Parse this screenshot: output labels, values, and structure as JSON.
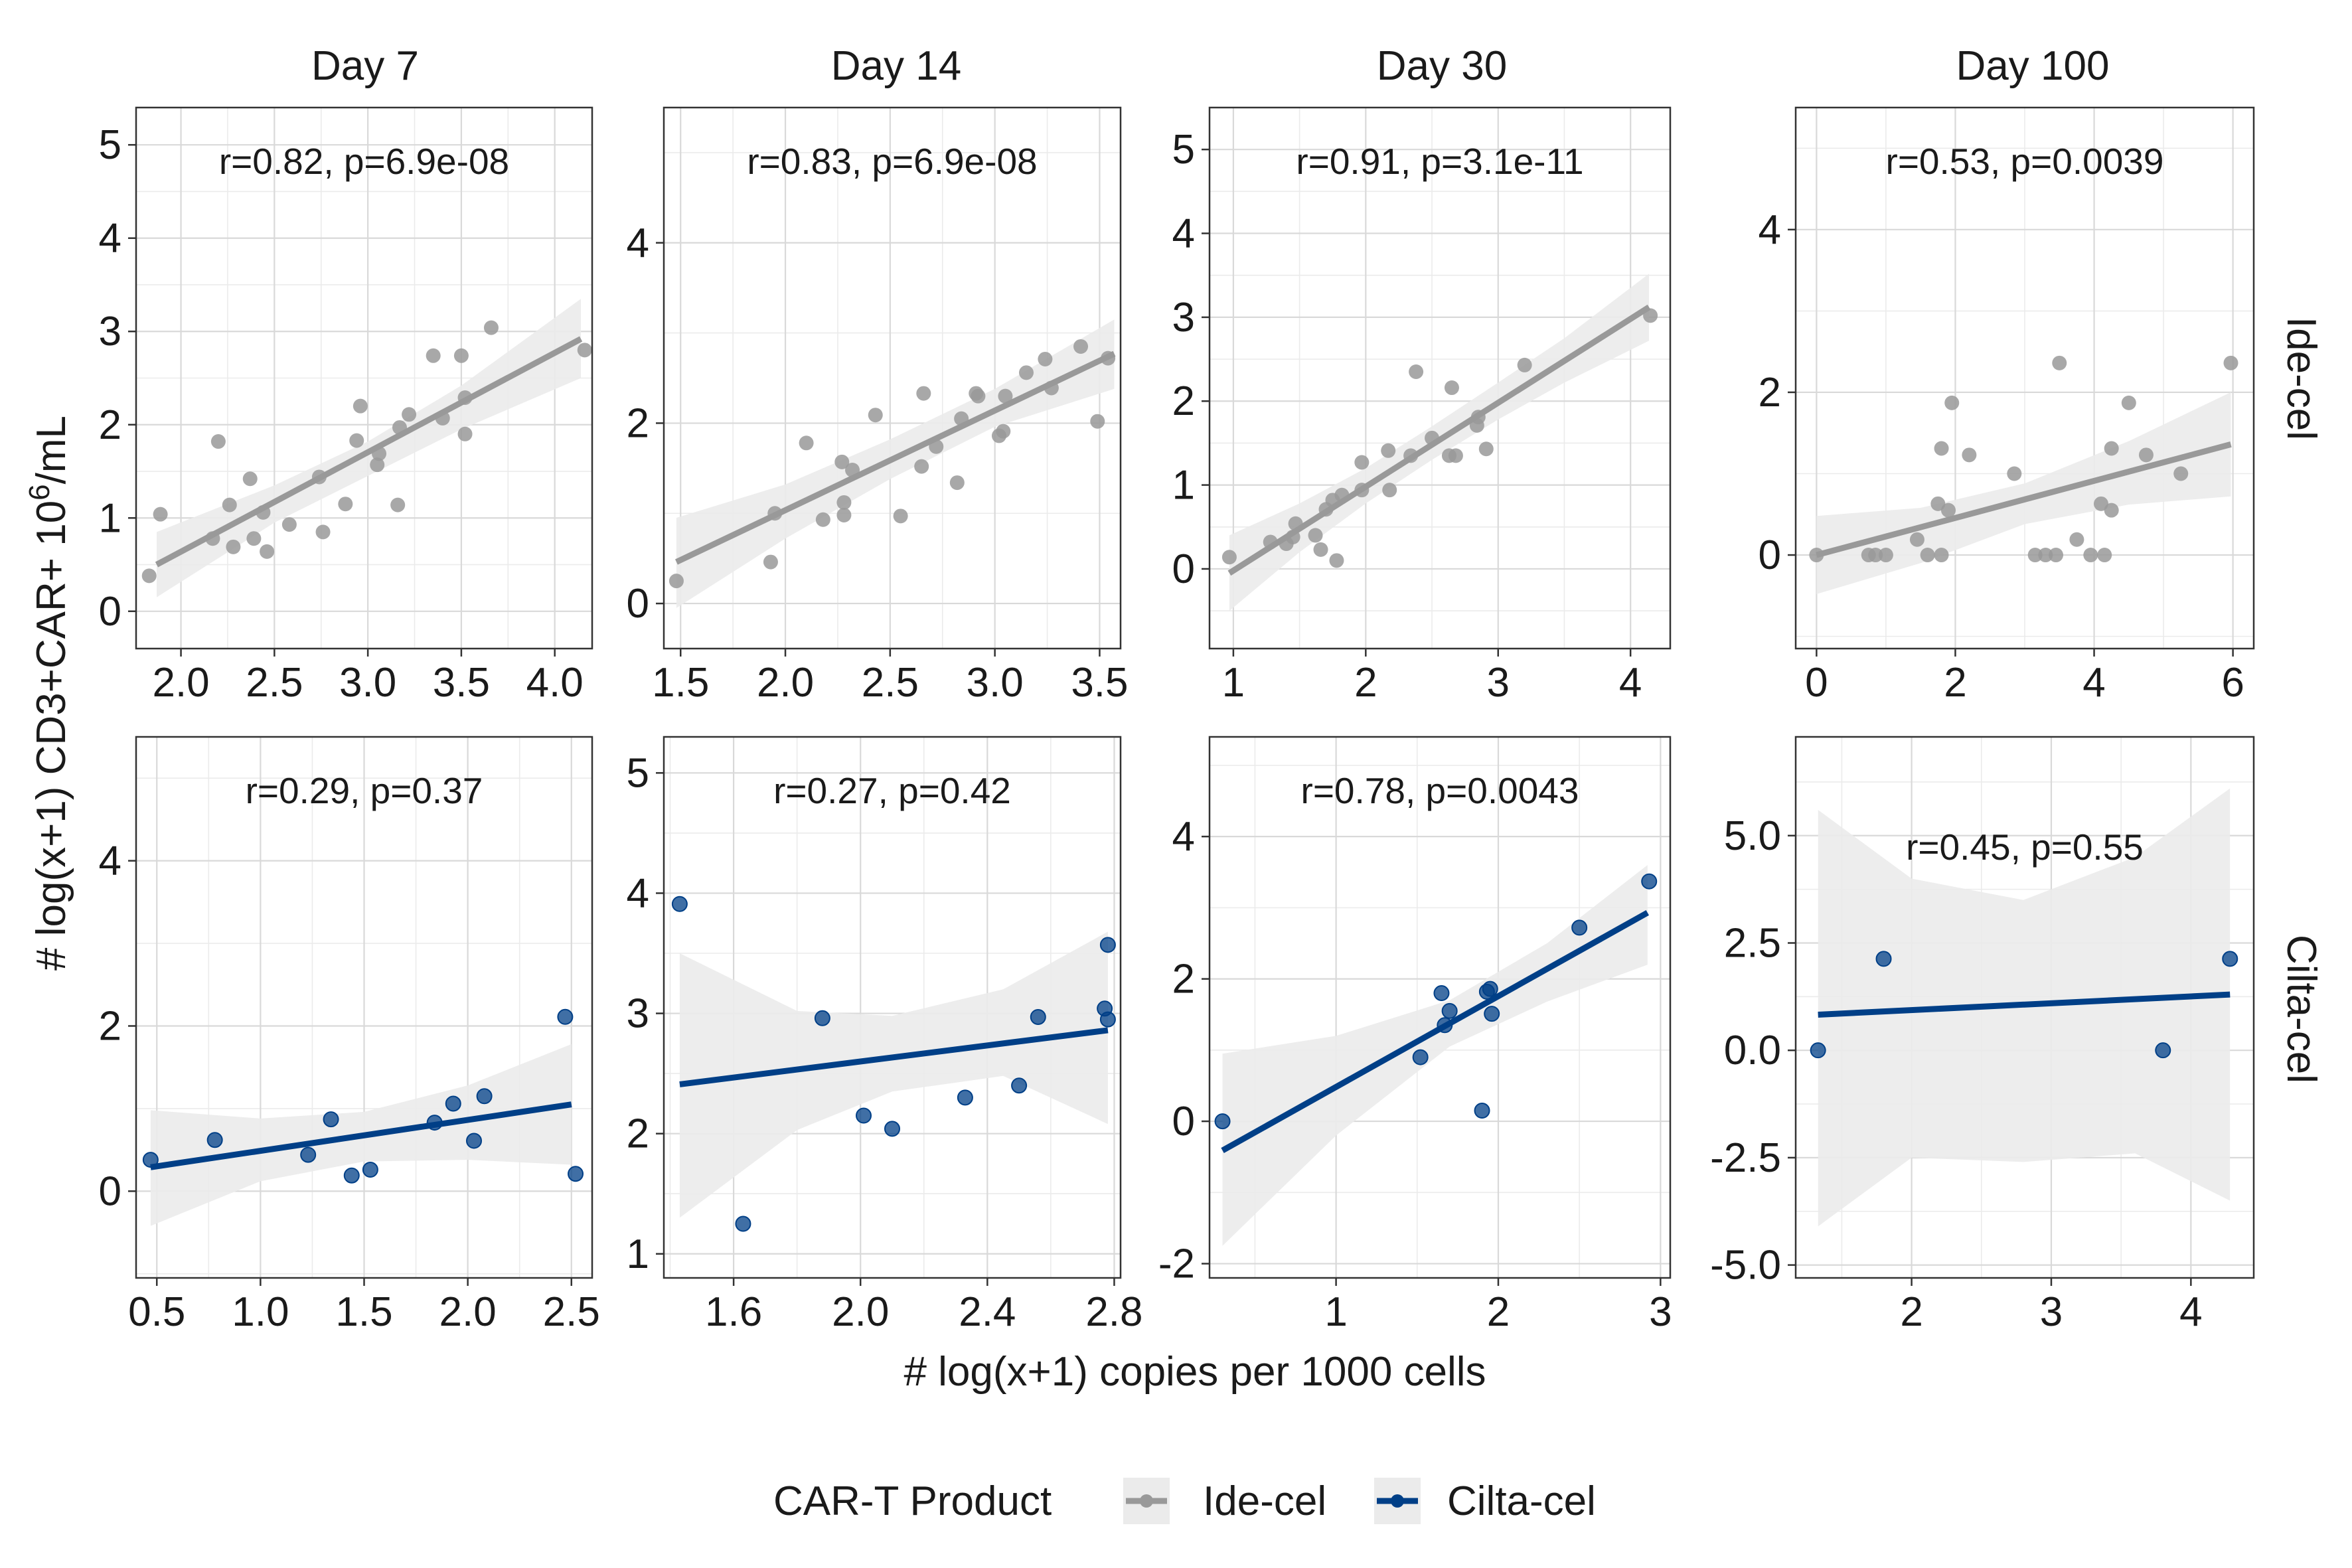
{
  "chart_data": {
    "type": "scatter",
    "xlabel": "# log(x+1) copies per 1000 cells",
    "ylabel_main": "# log(x+1) CD3+CAR+ 10",
    "ylabel_sup": "6",
    "ylabel_unit": "/mL",
    "columns": [
      "Day 7",
      "Day 14",
      "Day 30",
      "Day 100"
    ],
    "rows": [
      "Ide-cel",
      "Cilta-cel"
    ],
    "colors": {
      "Ide-cel": "#999999",
      "Cilta-cel": "#003f87",
      "band": "#ebebeb"
    },
    "legend": {
      "title": "CAR-T Product",
      "position": "bottom",
      "items": [
        {
          "label": "Ide-cel",
          "color": "#999999"
        },
        {
          "label": "Cilta-cel",
          "color": "#003f87"
        }
      ]
    },
    "grid": true,
    "panels": [
      {
        "row": 0,
        "col": 0,
        "product": "Ide-cel",
        "annotation": "r=0.82, p=6.9e-08",
        "xlim": [
          1.76,
          4.2
        ],
        "ylim": [
          -0.4,
          5.4
        ],
        "xticks": [
          2.0,
          2.5,
          3.0,
          3.5,
          4.0
        ],
        "xtick_labels": [
          "2.0",
          "2.5",
          "3.0",
          "3.5",
          "4.0"
        ],
        "yticks": [
          0,
          1,
          2,
          3,
          4,
          5
        ],
        "ytick_labels": [
          "0",
          "1",
          "2",
          "3",
          "4",
          "5"
        ],
        "fit": {
          "x": [
            1.87,
            4.14
          ],
          "y": [
            0.5,
            2.92
          ]
        },
        "band": {
          "x": [
            1.87,
            2.5,
            3.0,
            3.5,
            4.14
          ],
          "upper": [
            0.85,
            1.35,
            1.82,
            2.42,
            3.35
          ],
          "lower": [
            0.15,
            0.95,
            1.45,
            1.95,
            2.5
          ]
        },
        "points": [
          [
            1.83,
            0.38
          ],
          [
            1.89,
            1.04
          ],
          [
            2.17,
            0.78
          ],
          [
            2.2,
            1.82
          ],
          [
            2.26,
            1.14
          ],
          [
            2.28,
            0.69
          ],
          [
            2.37,
            1.42
          ],
          [
            2.39,
            0.78
          ],
          [
            2.44,
            1.06
          ],
          [
            2.46,
            0.64
          ],
          [
            2.58,
            0.93
          ],
          [
            2.74,
            1.44
          ],
          [
            2.76,
            0.85
          ],
          [
            2.88,
            1.15
          ],
          [
            2.94,
            1.83
          ],
          [
            2.96,
            2.2
          ],
          [
            3.05,
            1.57
          ],
          [
            3.06,
            1.69
          ],
          [
            3.16,
            1.14
          ],
          [
            3.17,
            1.97
          ],
          [
            3.22,
            2.11
          ],
          [
            3.35,
            2.74
          ],
          [
            3.4,
            2.07
          ],
          [
            3.5,
            2.74
          ],
          [
            3.52,
            2.29
          ],
          [
            3.52,
            1.9
          ],
          [
            3.66,
            3.04
          ],
          [
            4.16,
            2.8
          ]
        ]
      },
      {
        "row": 0,
        "col": 1,
        "product": "Ide-cel",
        "annotation": "r=0.83, p=6.9e-08",
        "xlim": [
          1.42,
          3.6
        ],
        "ylim": [
          -0.5,
          5.5
        ],
        "xticks": [
          1.5,
          2.0,
          2.5,
          3.0,
          3.5
        ],
        "xtick_labels": [
          "1.5",
          "2.0",
          "2.5",
          "3.0",
          "3.5"
        ],
        "yticks": [
          0,
          2,
          4
        ],
        "ytick_labels": [
          "0",
          "2",
          "4"
        ],
        "fit": {
          "x": [
            1.48,
            3.57
          ],
          "y": [
            0.46,
            2.77
          ]
        },
        "band": {
          "x": [
            1.48,
            2.0,
            2.5,
            3.0,
            3.57
          ],
          "upper": [
            0.95,
            1.32,
            1.82,
            2.38,
            3.15
          ],
          "lower": [
            -0.05,
            0.72,
            1.38,
            1.96,
            2.38
          ]
        },
        "points": [
          [
            1.48,
            0.25
          ],
          [
            1.93,
            0.46
          ],
          [
            1.95,
            1.0
          ],
          [
            2.1,
            1.78
          ],
          [
            2.18,
            0.93
          ],
          [
            2.27,
            1.57
          ],
          [
            2.28,
            0.98
          ],
          [
            2.28,
            1.12
          ],
          [
            2.32,
            1.48
          ],
          [
            2.43,
            2.09
          ],
          [
            2.55,
            0.97
          ],
          [
            2.65,
            1.52
          ],
          [
            2.66,
            2.33
          ],
          [
            2.72,
            1.74
          ],
          [
            2.82,
            1.34
          ],
          [
            2.84,
            2.05
          ],
          [
            2.91,
            2.33
          ],
          [
            2.92,
            2.3
          ],
          [
            3.02,
            1.86
          ],
          [
            3.04,
            1.91
          ],
          [
            3.05,
            2.3
          ],
          [
            3.15,
            2.56
          ],
          [
            3.24,
            2.71
          ],
          [
            3.27,
            2.39
          ],
          [
            3.41,
            2.85
          ],
          [
            3.49,
            2.02
          ],
          [
            3.54,
            2.72
          ]
        ]
      },
      {
        "row": 0,
        "col": 2,
        "product": "Ide-cel",
        "annotation": "r=0.91, p=3.1e-11",
        "xlim": [
          0.82,
          4.3
        ],
        "ylim": [
          -0.95,
          5.5
        ],
        "xticks": [
          1,
          2,
          3,
          4
        ],
        "xtick_labels": [
          "1",
          "2",
          "3",
          "4"
        ],
        "yticks": [
          0,
          1,
          2,
          3,
          4,
          5
        ],
        "ytick_labels": [
          "0",
          "1",
          "2",
          "3",
          "4",
          "5"
        ],
        "fit": {
          "x": [
            0.97,
            4.14
          ],
          "y": [
            -0.05,
            3.12
          ]
        },
        "band": {
          "x": [
            0.97,
            1.5,
            2.0,
            2.5,
            3.0,
            3.5,
            4.14
          ],
          "upper": [
            0.4,
            0.78,
            1.2,
            1.7,
            2.22,
            2.75,
            3.52
          ],
          "lower": [
            -0.5,
            0.2,
            0.78,
            1.3,
            1.78,
            2.22,
            2.72
          ]
        },
        "points": [
          [
            0.97,
            0.14
          ],
          [
            1.28,
            0.32
          ],
          [
            1.4,
            0.3
          ],
          [
            1.45,
            0.38
          ],
          [
            1.47,
            0.54
          ],
          [
            1.62,
            0.4
          ],
          [
            1.66,
            0.23
          ],
          [
            1.7,
            0.71
          ],
          [
            1.75,
            0.82
          ],
          [
            1.78,
            0.1
          ],
          [
            1.82,
            0.88
          ],
          [
            1.97,
            0.94
          ],
          [
            1.97,
            1.27
          ],
          [
            2.17,
            1.41
          ],
          [
            2.18,
            0.94
          ],
          [
            2.34,
            1.35
          ],
          [
            2.38,
            2.35
          ],
          [
            2.5,
            1.56
          ],
          [
            2.63,
            1.35
          ],
          [
            2.65,
            2.16
          ],
          [
            2.68,
            1.35
          ],
          [
            2.84,
            1.71
          ],
          [
            2.85,
            1.81
          ],
          [
            2.91,
            1.43
          ],
          [
            3.2,
            2.43
          ],
          [
            4.15,
            3.02
          ]
        ]
      },
      {
        "row": 0,
        "col": 3,
        "product": "Ide-cel",
        "annotation": "r=0.53, p=0.0039",
        "xlim": [
          -0.3,
          6.3
        ],
        "ylim": [
          -1.15,
          5.5
        ],
        "xticks": [
          0,
          2,
          4,
          6
        ],
        "xtick_labels": [
          "0",
          "2",
          "4",
          "6"
        ],
        "yticks": [
          0,
          2,
          4
        ],
        "ytick_labels": [
          "0",
          "2",
          "4"
        ],
        "fit": {
          "x": [
            0.0,
            5.97
          ],
          "y": [
            0.0,
            1.36
          ]
        },
        "band": {
          "x": [
            0.0,
            1.5,
            3.0,
            4.5,
            5.97
          ],
          "upper": [
            0.48,
            0.58,
            0.88,
            1.4,
            2.0
          ],
          "lower": [
            -0.48,
            -0.1,
            0.38,
            0.62,
            0.72
          ]
        },
        "points": [
          [
            0.0,
            0.0
          ],
          [
            0.75,
            0.0
          ],
          [
            0.85,
            0.0
          ],
          [
            1.0,
            0.0
          ],
          [
            1.45,
            0.19
          ],
          [
            1.6,
            0.0
          ],
          [
            1.75,
            0.63
          ],
          [
            1.8,
            1.31
          ],
          [
            1.8,
            0.0
          ],
          [
            1.9,
            0.55
          ],
          [
            1.95,
            1.87
          ],
          [
            2.2,
            1.23
          ],
          [
            2.85,
            1.0
          ],
          [
            3.15,
            0.0
          ],
          [
            3.3,
            0.0
          ],
          [
            3.45,
            0.0
          ],
          [
            3.5,
            2.36
          ],
          [
            3.75,
            0.19
          ],
          [
            3.95,
            0.0
          ],
          [
            4.1,
            0.63
          ],
          [
            4.15,
            0.0
          ],
          [
            4.25,
            1.31
          ],
          [
            4.25,
            0.55
          ],
          [
            4.5,
            1.87
          ],
          [
            4.75,
            1.23
          ],
          [
            5.25,
            1.0
          ],
          [
            5.97,
            2.36
          ]
        ]
      },
      {
        "row": 1,
        "col": 0,
        "product": "Cilta-cel",
        "annotation": "r=0.29, p=0.37",
        "xlim": [
          0.4,
          2.6
        ],
        "ylim": [
          -1.05,
          5.5
        ],
        "xticks": [
          0.5,
          1.0,
          1.5,
          2.0,
          2.5
        ],
        "xtick_labels": [
          "0.5",
          "1.0",
          "1.5",
          "2.0",
          "2.5"
        ],
        "yticks": [
          0,
          2,
          4
        ],
        "ytick_labels": [
          "0",
          "2",
          "4"
        ],
        "fit": {
          "x": [
            0.47,
            2.5
          ],
          "y": [
            0.29,
            1.05
          ]
        },
        "band": {
          "x": [
            0.47,
            1.0,
            1.5,
            2.0,
            2.5
          ],
          "upper": [
            0.98,
            0.88,
            0.96,
            1.28,
            1.78
          ],
          "lower": [
            -0.42,
            0.12,
            0.36,
            0.38,
            0.32
          ]
        },
        "points": [
          [
            0.47,
            0.38
          ],
          [
            0.78,
            0.62
          ],
          [
            1.23,
            0.44
          ],
          [
            1.34,
            0.87
          ],
          [
            1.44,
            0.19
          ],
          [
            1.53,
            0.26
          ],
          [
            1.84,
            0.83
          ],
          [
            1.93,
            1.06
          ],
          [
            2.03,
            0.61
          ],
          [
            2.08,
            1.15
          ],
          [
            2.47,
            2.11
          ],
          [
            2.52,
            0.21
          ]
        ]
      },
      {
        "row": 1,
        "col": 1,
        "product": "Cilta-cel",
        "annotation": "r=0.27, p=0.42",
        "xlim": [
          1.38,
          2.82
        ],
        "ylim": [
          0.8,
          5.3
        ],
        "xticks": [
          1.6,
          2.0,
          2.4,
          2.8
        ],
        "xtick_labels": [
          "1.6",
          "2.0",
          "2.4",
          "2.8"
        ],
        "yticks": [
          1,
          2,
          3,
          4,
          5
        ],
        "ytick_labels": [
          "1",
          "2",
          "3",
          "4",
          "5"
        ],
        "fit": {
          "x": [
            1.43,
            2.78
          ],
          "y": [
            2.41,
            2.86
          ]
        },
        "band": {
          "x": [
            1.43,
            1.8,
            2.1,
            2.45,
            2.78
          ],
          "upper": [
            3.5,
            3.02,
            2.98,
            3.2,
            3.68
          ],
          "lower": [
            1.3,
            2.03,
            2.35,
            2.48,
            2.08
          ]
        },
        "points": [
          [
            1.43,
            3.91
          ],
          [
            1.63,
            1.25
          ],
          [
            1.88,
            2.96
          ],
          [
            2.01,
            2.15
          ],
          [
            2.1,
            2.04
          ],
          [
            2.33,
            2.3
          ],
          [
            2.5,
            2.4
          ],
          [
            2.56,
            2.97
          ],
          [
            2.77,
            3.04
          ],
          [
            2.78,
            3.57
          ],
          [
            2.78,
            2.95
          ]
        ]
      },
      {
        "row": 1,
        "col": 2,
        "product": "Cilta-cel",
        "annotation": "r=0.78, p=0.0043",
        "xlim": [
          0.22,
          3.06
        ],
        "ylim": [
          -2.2,
          5.4
        ],
        "xticks": [
          1,
          2,
          3
        ],
        "xtick_labels": [
          "1",
          "2",
          "3"
        ],
        "yticks": [
          -2,
          0,
          2,
          4
        ],
        "ytick_labels": [
          "-2",
          "0",
          "2",
          "4"
        ],
        "fit": {
          "x": [
            0.3,
            2.92
          ],
          "y": [
            -0.41,
            2.93
          ]
        },
        "band": {
          "x": [
            0.3,
            1.0,
            1.7,
            2.3,
            2.92
          ],
          "upper": [
            0.95,
            1.2,
            1.7,
            2.5,
            3.6
          ],
          "lower": [
            -1.75,
            -0.2,
            1.05,
            1.68,
            2.2
          ]
        },
        "points": [
          [
            0.3,
            0.0
          ],
          [
            1.52,
            0.9
          ],
          [
            1.65,
            1.8
          ],
          [
            1.67,
            1.35
          ],
          [
            1.7,
            1.55
          ],
          [
            1.9,
            0.15
          ],
          [
            1.93,
            1.82
          ],
          [
            1.95,
            1.86
          ],
          [
            1.96,
            1.51
          ],
          [
            2.5,
            2.72
          ],
          [
            2.93,
            3.37
          ]
        ]
      },
      {
        "row": 1,
        "col": 3,
        "product": "Cilta-cel",
        "annotation": "r=0.45, p=0.55",
        "xlim": [
          1.17,
          4.45
        ],
        "ylim": [
          -5.3,
          7.3
        ],
        "xticks": [
          2,
          3,
          4
        ],
        "xtick_labels": [
          "2",
          "3",
          "4"
        ],
        "yticks": [
          -5.0,
          -2.5,
          0.0,
          2.5,
          5.0
        ],
        "ytick_labels": [
          "-5.0",
          "-2.5",
          "0.0",
          "2.5",
          "5.0"
        ],
        "fit": {
          "x": [
            1.33,
            4.28
          ],
          "y": [
            0.83,
            1.3
          ]
        },
        "band": {
          "x": [
            1.33,
            2.0,
            2.8,
            3.6,
            4.28
          ],
          "upper": [
            5.6,
            4.0,
            3.5,
            4.5,
            6.1
          ],
          "lower": [
            -4.1,
            -2.5,
            -2.6,
            -2.4,
            -3.5
          ]
        },
        "points": [
          [
            1.33,
            0.0
          ],
          [
            1.8,
            2.13
          ],
          [
            3.8,
            0.0
          ],
          [
            4.28,
            2.13
          ]
        ]
      }
    ]
  }
}
